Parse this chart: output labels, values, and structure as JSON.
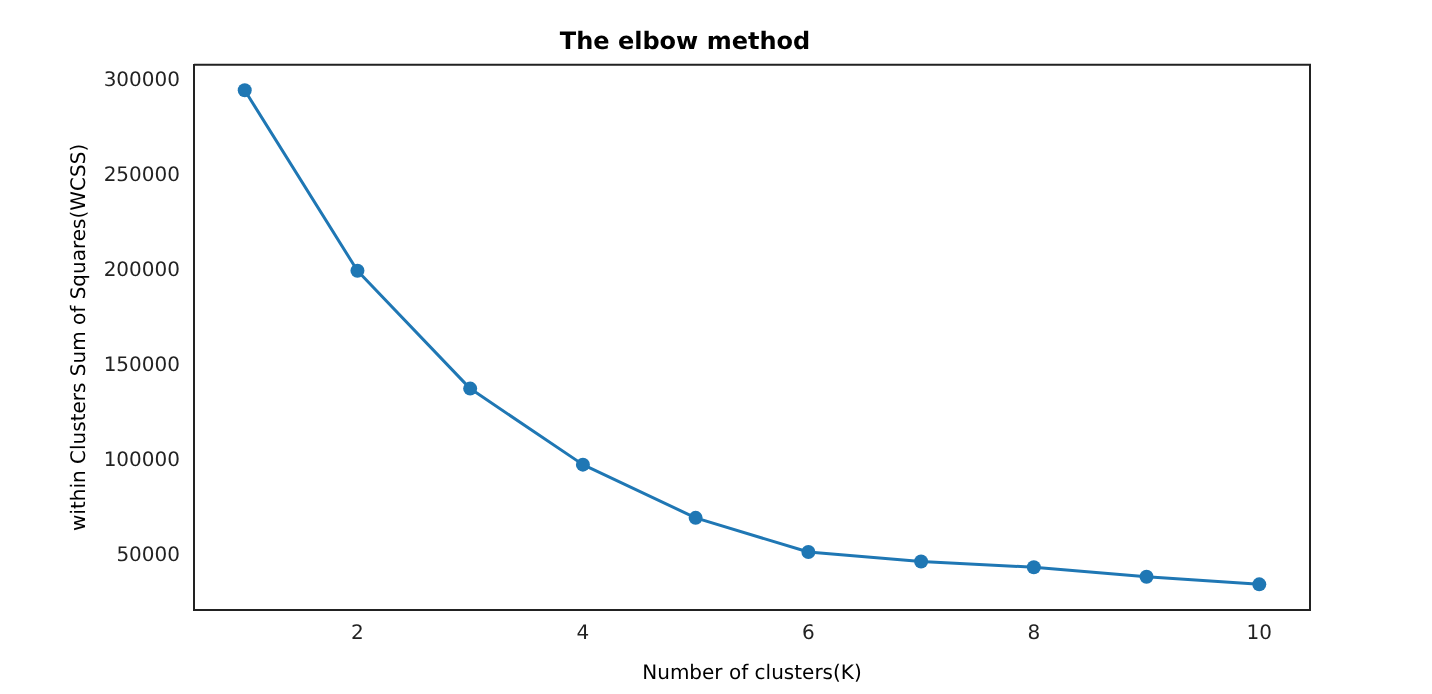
{
  "chart_data": {
    "type": "line",
    "title": "The elbow method",
    "xlabel": "Number of clusters(K)",
    "ylabel": "within Clusters Sum of Squares(WCSS)",
    "x": [
      1,
      2,
      3,
      4,
      5,
      6,
      7,
      8,
      9,
      10
    ],
    "series": [
      {
        "color": "#1f77b4",
        "values": [
          295000,
          200000,
          138000,
          98000,
          70000,
          52000,
          47000,
          44000,
          39000,
          35000
        ]
      }
    ],
    "xlim": [
      0.55,
      10.45
    ],
    "xticks": [
      2,
      4,
      6,
      8,
      10
    ],
    "ylim": [
      21500,
      308400
    ],
    "yticks": [
      50000,
      100000,
      150000,
      200000,
      250000,
      300000
    ],
    "grid": false,
    "legend": false,
    "marker": "circle",
    "line_style": "solid"
  }
}
